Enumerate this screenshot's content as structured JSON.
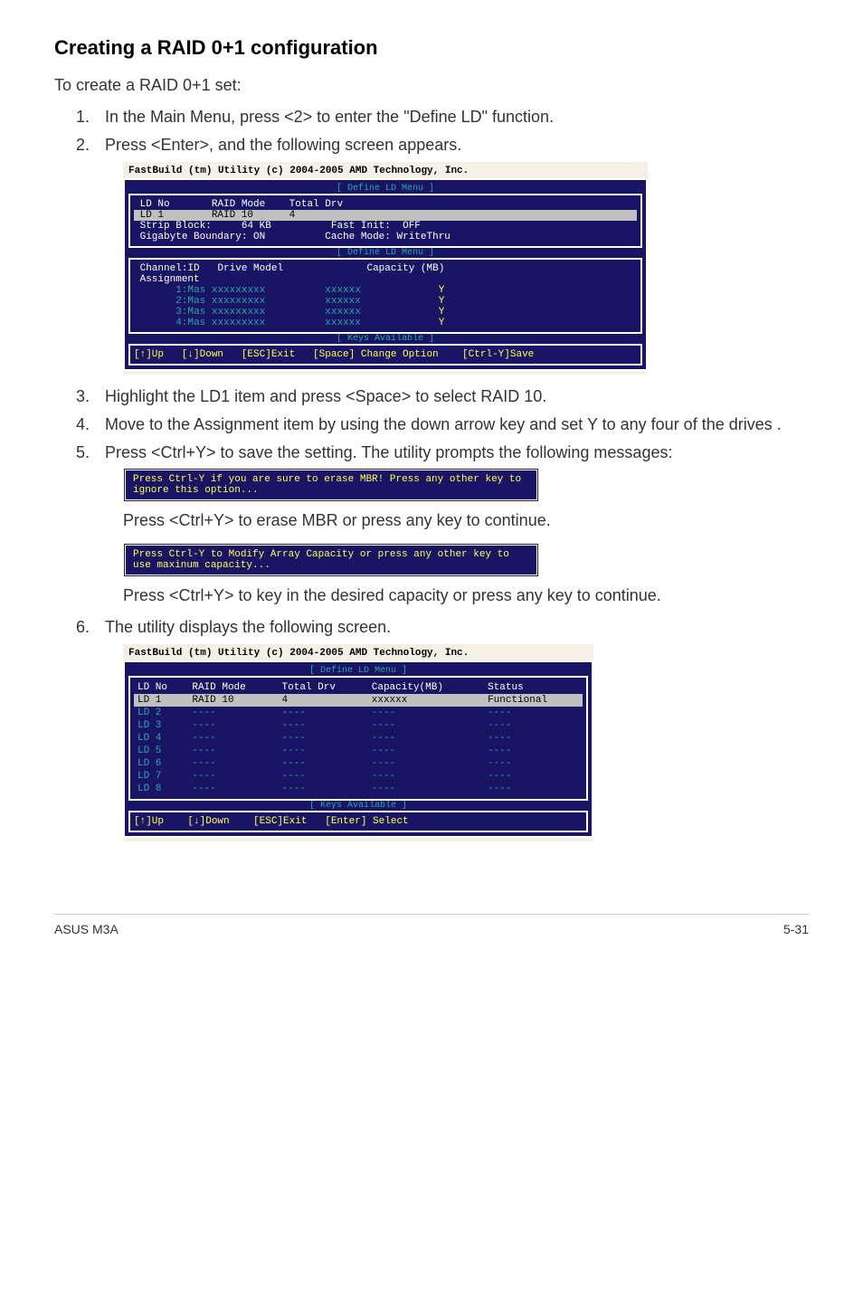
{
  "heading": "Creating a RAID 0+1 configuration",
  "intro": "To create a RAID 0+1 set:",
  "steps": {
    "s1": "In the Main Menu, press <2> to enter the \"Define LD\" function.",
    "s2": "Press <Enter>, and the following screen appears.",
    "s3": "Highlight the LD1 item and press <Space> to select RAID 10.",
    "s4": "Move to the Assignment item by using the down arrow key and set Y to any four of the drives .",
    "s5": "Press <Ctrl+Y> to save the setting. The utility prompts the following messages:",
    "s5a": "Press <Ctrl+Y> to erase MBR or press any key to continue.",
    "s5b": "Press <Ctrl+Y> to key in the desired capacity or press any key to continue.",
    "s6": "The utility displays the following screen."
  },
  "term1": {
    "title": "FastBuild (tm) Utility (c) 2004-2005 AMD Technology, Inc.",
    "menu_label": "[ Define LD Menu ]",
    "hdr": {
      "ld_no": "LD No",
      "raid_mode": "RAID Mode",
      "total_drv": "Total Drv"
    },
    "row": {
      "ld_no": "LD 1",
      "raid_mode": "RAID 10",
      "total_drv": "4"
    },
    "opts": {
      "strip_block_label": "Strip Block:",
      "strip_block_val": "64 KB",
      "gig_label": "Gigabyte Boundary:",
      "gig_val": "ON",
      "fast_label": "Fast Init:",
      "fast_val": "OFF",
      "cache_label": "Cache Mode:",
      "cache_val": "WriteThru"
    },
    "drive_hdr": {
      "chan": "Channel:ID",
      "model": "Drive Model",
      "cap": "Capacity (MB)",
      "assign": "Assignment"
    },
    "drives": [
      {
        "id": "1:Mas",
        "model": "xxxxxxxxx",
        "cap": "xxxxxx",
        "assign": "Y"
      },
      {
        "id": "2:Mas",
        "model": "xxxxxxxxx",
        "cap": "xxxxxx",
        "assign": "Y"
      },
      {
        "id": "3:Mas",
        "model": "xxxxxxxxx",
        "cap": "xxxxxx",
        "assign": "Y"
      },
      {
        "id": "4:Mas",
        "model": "xxxxxxxxx",
        "cap": "xxxxxx",
        "assign": "Y"
      }
    ],
    "keys_label": "[ Keys Available ]",
    "keys": "[↑]Up   [↓]Down   [ESC]Exit   [Space] Change Option    [Ctrl-Y]Save"
  },
  "msg1": "Press Ctrl-Y if you are sure to erase MBR! Press any other key to ignore this option...",
  "msg2": "Press Ctrl-Y to Modify Array Capacity or press any other key to use maxinum capacity...",
  "term2": {
    "title": "FastBuild (tm) Utility (c) 2004-2005 AMD Technology, Inc.",
    "menu_label": "[ Define LD Menu ]",
    "hdr": {
      "ld_no": "LD No",
      "raid_mode": "RAID Mode",
      "total_drv": "Total Drv",
      "cap": "Capacity(MB)",
      "status": "Status"
    },
    "rows": [
      {
        "no": "LD 1",
        "mode": "RAID 10",
        "drv": "4",
        "cap": "xxxxxx",
        "status": "Functional",
        "hl": true
      },
      {
        "no": "LD 2",
        "mode": "----",
        "drv": "----",
        "cap": "----",
        "status": "----"
      },
      {
        "no": "LD 3",
        "mode": "----",
        "drv": "----",
        "cap": "----",
        "status": "----"
      },
      {
        "no": "LD 4",
        "mode": "----",
        "drv": "----",
        "cap": "----",
        "status": "----"
      },
      {
        "no": "LD 5",
        "mode": "----",
        "drv": "----",
        "cap": "----",
        "status": "----"
      },
      {
        "no": "LD 6",
        "mode": "----",
        "drv": "----",
        "cap": "----",
        "status": "----"
      },
      {
        "no": "LD 7",
        "mode": "----",
        "drv": "----",
        "cap": "----",
        "status": "----"
      },
      {
        "no": "LD 8",
        "mode": "----",
        "drv": "----",
        "cap": "----",
        "status": "----"
      }
    ],
    "keys_label": "[ Keys Available ]",
    "keys": "[↑]Up    [↓]Down    [ESC]Exit   [Enter] Select"
  },
  "footer": {
    "left": "ASUS M3A",
    "right": "5-31"
  },
  "colors": {
    "terminal_bg": "#1a1464",
    "teal": "#2aa8a8",
    "yellow": "#ffff55",
    "highlight_bg": "#c0c0c0"
  }
}
